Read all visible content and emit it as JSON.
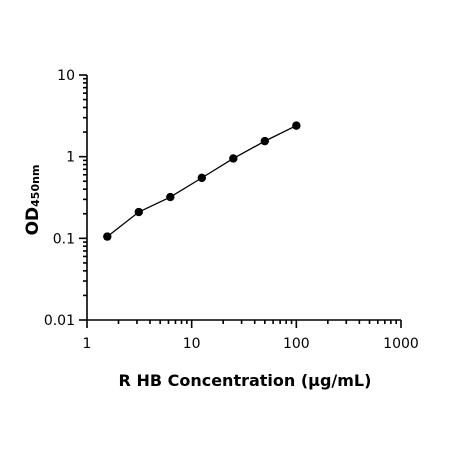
{
  "chart_data": {
    "type": "scatter",
    "xlabel": "R HB Concentration (µg/mL)",
    "ylabel": "OD",
    "ylabel_subscript": "450nm",
    "x_scale": "log",
    "y_scale": "log",
    "xlim": [
      1,
      1000
    ],
    "ylim": [
      0.01,
      10
    ],
    "x_ticks": [
      1,
      10,
      100,
      1000
    ],
    "x_tick_labels": [
      "1",
      "10",
      "100",
      "1000"
    ],
    "y_ticks": [
      0.01,
      0.1,
      1,
      10
    ],
    "y_tick_labels": [
      "0.01",
      "0.1",
      "1",
      "10"
    ],
    "grid": false,
    "legend": "none",
    "point_color": "#000000",
    "line_color": "#000000",
    "series": [
      {
        "x": [
          1.5625,
          3.125,
          6.25,
          12.5,
          25,
          50,
          100
        ],
        "y": [
          0.105,
          0.21,
          0.32,
          0.55,
          0.95,
          1.55,
          2.4
        ],
        "fit_line": true
      }
    ]
  }
}
